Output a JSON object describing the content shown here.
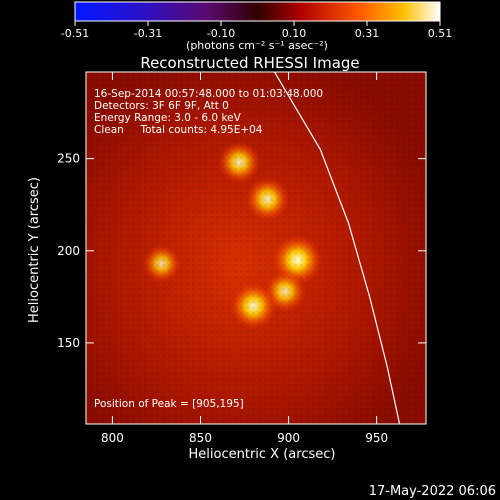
{
  "chart_data": {
    "type": "heatmap",
    "title": "Reconstructed RHESSI Image",
    "xlabel": "Heliocentric X (arcsec)",
    "ylabel": "Heliocentric Y (arcsec)",
    "xlim": [
      785,
      978
    ],
    "ylim": [
      106,
      297
    ],
    "x_ticks": [
      800,
      850,
      900,
      950
    ],
    "y_ticks": [
      150,
      200,
      250
    ],
    "colorbar": {
      "ticks": [
        "-0.51",
        "-0.31",
        "-0.10",
        "0.10",
        "0.31",
        "0.51"
      ],
      "vmin": -0.51,
      "vmax": 0.51,
      "unit_label": "(photons cm⁻² s⁻¹ asec⁻²)"
    },
    "annotations": [
      "16-Sep-2014 00:57:48.000 to 01:03:48.000",
      "Detectors: 3F 6F 9F, Att 0",
      "Energy Range: 3.0 - 6.0 keV",
      "Clean     Total counts: 4.95E+04"
    ],
    "peak_label": "Position of Peak = [905,195]",
    "peak": [
      905,
      195
    ],
    "sources": [
      {
        "x": 905,
        "y": 195,
        "intensity": 0.51
      },
      {
        "x": 888,
        "y": 228,
        "intensity": 0.4
      },
      {
        "x": 872,
        "y": 248,
        "intensity": 0.38
      },
      {
        "x": 898,
        "y": 178,
        "intensity": 0.36
      },
      {
        "x": 880,
        "y": 170,
        "intensity": 0.45
      },
      {
        "x": 828,
        "y": 193,
        "intensity": 0.3
      }
    ],
    "limb_arc": [
      [
        892,
        297
      ],
      [
        918,
        255
      ],
      [
        934,
        215
      ],
      [
        946,
        175
      ],
      [
        956,
        137
      ],
      [
        963,
        106
      ]
    ]
  },
  "footer_timestamp": "17-May-2022 06:06",
  "colors": {
    "limb": "#ffffff",
    "axes": "#ffffff",
    "background": "#000000"
  }
}
